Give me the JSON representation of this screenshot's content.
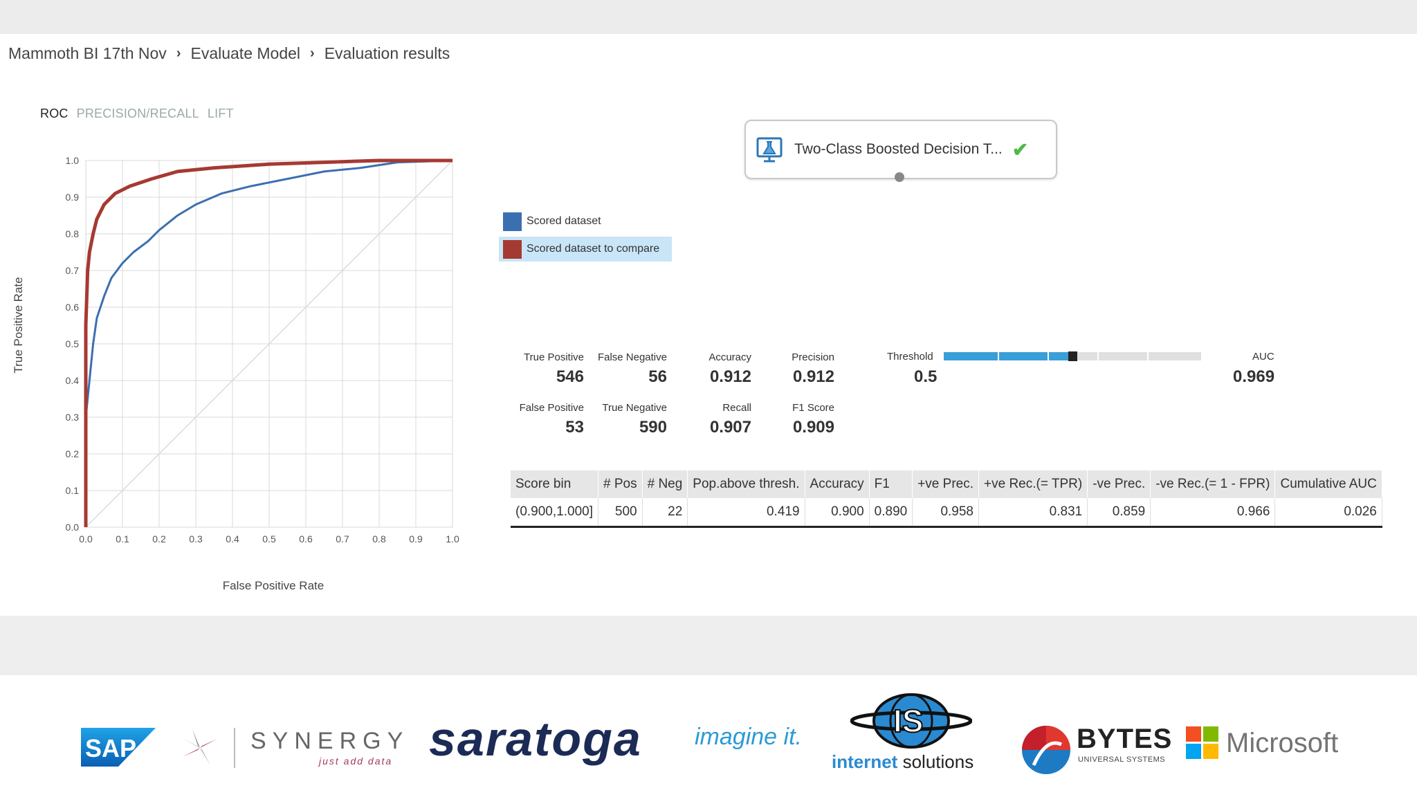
{
  "breadcrumb": [
    "Mammoth BI 17th Nov",
    "Evaluate Model",
    "Evaluation results"
  ],
  "tabs": [
    {
      "label": "ROC",
      "active": true
    },
    {
      "label": "PRECISION/RECALL",
      "active": false
    },
    {
      "label": "LIFT",
      "active": false
    }
  ],
  "chart_data": {
    "type": "line",
    "xlabel": "False Positive Rate",
    "ylabel": "True Positive Rate",
    "xlim": [
      0,
      1
    ],
    "ylim": [
      0,
      1
    ],
    "x_ticks": [
      "0.0",
      "0.1",
      "0.2",
      "0.3",
      "0.4",
      "0.5",
      "0.6",
      "0.7",
      "0.8",
      "0.9",
      "1.0"
    ],
    "y_ticks": [
      "0.0",
      "0.1",
      "0.2",
      "0.3",
      "0.4",
      "0.5",
      "0.6",
      "0.7",
      "0.8",
      "0.9",
      "1.0"
    ],
    "grid": true,
    "series": [
      {
        "name": "Scored dataset",
        "color": "#3b6fb0",
        "points": [
          [
            0,
            0
          ],
          [
            0,
            0.3
          ],
          [
            0.01,
            0.4
          ],
          [
            0.02,
            0.5
          ],
          [
            0.03,
            0.57
          ],
          [
            0.05,
            0.63
          ],
          [
            0.07,
            0.68
          ],
          [
            0.1,
            0.72
          ],
          [
            0.13,
            0.75
          ],
          [
            0.17,
            0.78
          ],
          [
            0.2,
            0.81
          ],
          [
            0.25,
            0.85
          ],
          [
            0.3,
            0.88
          ],
          [
            0.37,
            0.91
          ],
          [
            0.45,
            0.93
          ],
          [
            0.55,
            0.95
          ],
          [
            0.65,
            0.97
          ],
          [
            0.75,
            0.98
          ],
          [
            0.85,
            0.995
          ],
          [
            1.0,
            1.0
          ]
        ]
      },
      {
        "name": "Scored dataset to compare",
        "color": "#a53a32",
        "points": [
          [
            0,
            0
          ],
          [
            0,
            0.55
          ],
          [
            0.005,
            0.7
          ],
          [
            0.01,
            0.75
          ],
          [
            0.02,
            0.8
          ],
          [
            0.03,
            0.84
          ],
          [
            0.05,
            0.88
          ],
          [
            0.08,
            0.91
          ],
          [
            0.12,
            0.93
          ],
          [
            0.18,
            0.95
          ],
          [
            0.25,
            0.97
          ],
          [
            0.35,
            0.98
          ],
          [
            0.5,
            0.99
          ],
          [
            0.65,
            0.995
          ],
          [
            0.8,
            1.0
          ],
          [
            1.0,
            1.0
          ]
        ]
      }
    ],
    "diagonal": {
      "points": [
        [
          0,
          0
        ],
        [
          1,
          1
        ]
      ],
      "color": "#d6dce6"
    }
  },
  "legend": [
    {
      "label": "Scored dataset",
      "color": "#3b6fb0",
      "selected": false
    },
    {
      "label": "Scored dataset to compare",
      "color": "#a53a32",
      "selected": true
    }
  ],
  "node": {
    "label": "Two-Class Boosted Decision T...",
    "status_icon": "check-icon",
    "icon": "flask-monitor-icon"
  },
  "metrics": {
    "true_positive": {
      "label": "True Positive",
      "value": "546"
    },
    "false_negative": {
      "label": "False Negative",
      "value": "56"
    },
    "accuracy": {
      "label": "Accuracy",
      "value": "0.912"
    },
    "precision": {
      "label": "Precision",
      "value": "0.912"
    },
    "false_positive": {
      "label": "False Positive",
      "value": "53"
    },
    "true_negative": {
      "label": "True Negative",
      "value": "590"
    },
    "recall": {
      "label": "Recall",
      "value": "0.907"
    },
    "f1": {
      "label": "F1 Score",
      "value": "0.909"
    }
  },
  "threshold": {
    "label": "Threshold",
    "value": "0.5",
    "fraction": 0.5
  },
  "auc": {
    "label": "AUC",
    "value": "0.969"
  },
  "bins_table": {
    "headers": [
      "Score bin",
      "# Pos",
      "# Neg",
      "Pop.above thresh.",
      "Accuracy",
      "F1",
      "+ve Prec.",
      "+ve Rec.(= TPR)",
      "-ve Prec.",
      "-ve Rec.(= 1 - FPR)",
      "Cumulative AUC"
    ],
    "rows": [
      [
        "(0.900,1.000]",
        "500",
        "22",
        "0.419",
        "0.900",
        "0.890",
        "0.958",
        "0.831",
        "0.859",
        "0.966",
        "0.026"
      ]
    ]
  },
  "sponsors": {
    "sap": "SAP",
    "synergy": "SYNERGY",
    "synergy_tagline": "just add data",
    "saratoga": "saratoga",
    "imagine": "imagine it.",
    "is_monogram": "IS",
    "is_name_bold": "internet",
    "is_name_rest": "solutions",
    "bytes": "BYTES",
    "bytes_tagline": "UNIVERSAL SYSTEMS",
    "microsoft": "Microsoft"
  }
}
